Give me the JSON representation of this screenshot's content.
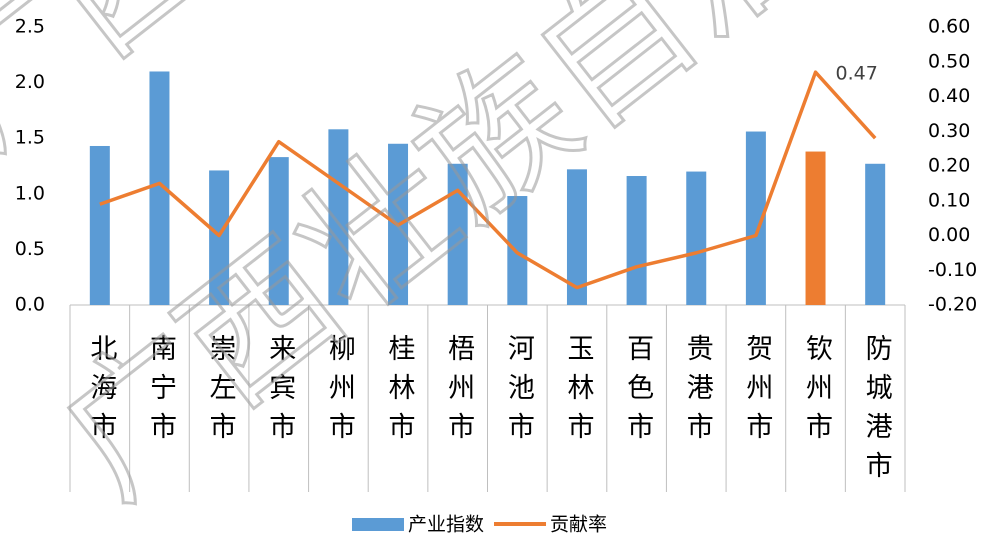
{
  "chart_data": {
    "type": "bar_line",
    "categories": [
      "北海市",
      "南宁市",
      "崇左市",
      "来宾市",
      "柳州市",
      "桂林市",
      "梧州市",
      "河池市",
      "玉林市",
      "百色市",
      "贵港市",
      "贺州市",
      "钦州市",
      "防城港市"
    ],
    "series": [
      {
        "name": "产业指数",
        "type": "bar",
        "color": "#5b9bd5",
        "colors": [
          "#5b9bd5",
          "#5b9bd5",
          "#5b9bd5",
          "#5b9bd5",
          "#5b9bd5",
          "#5b9bd5",
          "#5b9bd5",
          "#5b9bd5",
          "#5b9bd5",
          "#5b9bd5",
          "#5b9bd5",
          "#5b9bd5",
          "#ed7d31",
          "#5b9bd5"
        ],
        "values": [
          1.43,
          2.1,
          1.21,
          1.33,
          1.58,
          1.45,
          1.27,
          0.98,
          1.22,
          1.16,
          1.2,
          1.56,
          1.38,
          1.27
        ]
      },
      {
        "name": "贡献率",
        "type": "line",
        "axis": "y2",
        "color": "#ed7d31",
        "values": [
          0.09,
          0.15,
          0.0,
          0.27,
          0.15,
          0.03,
          0.13,
          -0.05,
          -0.15,
          -0.09,
          -0.05,
          0.0,
          0.47,
          0.28
        ]
      }
    ],
    "annotations": [
      {
        "index": 12,
        "series": 1
      }
    ],
    "ylim": [
      0,
      2.5
    ],
    "yticks": [
      {
        "value": 0,
        "label": "0.0"
      },
      0.5,
      {
        "value": 1,
        "label": "1.0"
      },
      1.5,
      {
        "value": 2,
        "label": "2.0"
      },
      2.5
    ],
    "y2lim": [
      -0.2,
      0.6
    ],
    "y2ticks": [
      {
        "value": -0.2,
        "label": "-0.20"
      },
      {
        "value": -0.1,
        "label": "-0.10"
      },
      {
        "value": 0,
        "label": "0.00"
      },
      {
        "value": 0.1,
        "label": "0.10"
      },
      {
        "value": 0.2,
        "label": "0.20"
      },
      {
        "value": 0.3,
        "label": "0.30"
      },
      {
        "value": 0.4,
        "label": "0.40"
      },
      {
        "value": 0.5,
        "label": "0.50"
      },
      {
        "value": 0.6,
        "label": "0.60"
      }
    ],
    "watermark": "广西壮族自治区",
    "legend": "bottom"
  }
}
